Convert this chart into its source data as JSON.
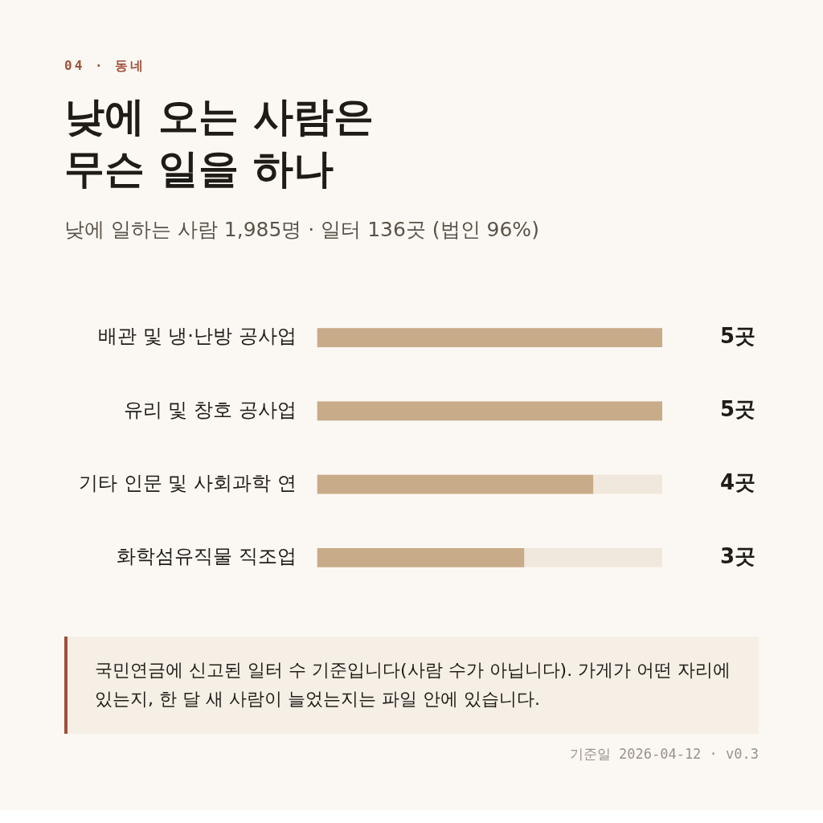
{
  "chart_data": {
    "type": "bar",
    "orientation": "horizontal",
    "title": "낮에 오는 사람은 무슨 일을 하나",
    "subtitle": "낮에 일하는 사람 1,985명 · 일터 136곳 (법인 96%)",
    "categories": [
      "배관 및 냉·난방 공사업",
      "유리 및 창호 공사업",
      "기타 인문 및 사회과학 연",
      "화학섬유직물 직조업"
    ],
    "values": [
      5,
      5,
      4,
      3
    ],
    "value_labels": [
      "5곳",
      "5곳",
      "4곳",
      "3곳"
    ],
    "color": "#c8ab88",
    "legend": false,
    "tick_labels": "y",
    "annotations": [
      "04 · 동네",
      "국민연금에 신고된 일터 수 기준입니다(사람 수가 아닙니다). 가게가 어떤 자리에 있는지, 한 달 새 사람이 늘었는지는 파일 안에 있습니다.",
      "기준일 2026-04-12 · v0.3"
    ]
  }
}
